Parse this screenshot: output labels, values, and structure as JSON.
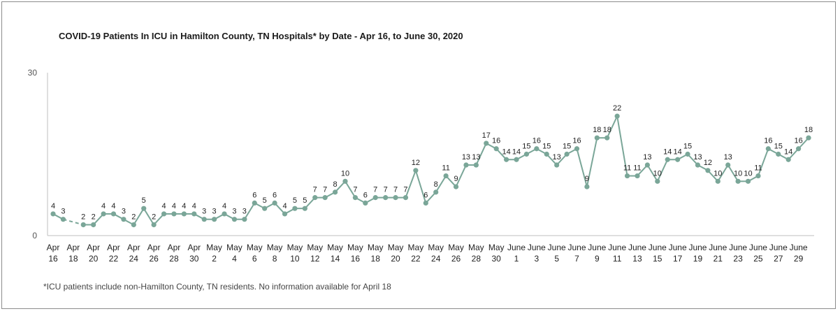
{
  "chart_data": {
    "type": "line",
    "title": "COVID-19 Patients In ICU in Hamilton County, TN Hospitals* by Date  - Apr 16, to June 30, 2020",
    "footnote": "*ICU patients include non-Hamilton County, TN  residents. No information available for April 18",
    "xlabel": "",
    "ylabel": "",
    "ylim": [
      0,
      30
    ],
    "y_ticks": [
      "0",
      "30"
    ],
    "grid": false,
    "line_color": "#7aa698",
    "x_tick_labels": [
      [
        "Apr",
        "16"
      ],
      [
        "Apr",
        "18"
      ],
      [
        "Apr",
        "20"
      ],
      [
        "Apr",
        "22"
      ],
      [
        "Apr",
        "24"
      ],
      [
        "Apr",
        "26"
      ],
      [
        "Apr",
        "28"
      ],
      [
        "Apr",
        "30"
      ],
      [
        "May",
        "2"
      ],
      [
        "May",
        "4"
      ],
      [
        "May",
        "6"
      ],
      [
        "May",
        "8"
      ],
      [
        "May",
        "10"
      ],
      [
        "May",
        "12"
      ],
      [
        "May",
        "14"
      ],
      [
        "May",
        "16"
      ],
      [
        "May",
        "18"
      ],
      [
        "May",
        "20"
      ],
      [
        "May",
        "22"
      ],
      [
        "May",
        "24"
      ],
      [
        "May",
        "26"
      ],
      [
        "May",
        "28"
      ],
      [
        "May",
        "30"
      ],
      [
        "June",
        "1"
      ],
      [
        "June",
        "3"
      ],
      [
        "June",
        "5"
      ],
      [
        "June",
        "7"
      ],
      [
        "June",
        "9"
      ],
      [
        "June",
        "11"
      ],
      [
        "June",
        "13"
      ],
      [
        "June",
        "15"
      ],
      [
        "June",
        "17"
      ],
      [
        "June",
        "19"
      ],
      [
        "June",
        "21"
      ],
      [
        "June",
        "23"
      ],
      [
        "June",
        "25"
      ],
      [
        "June",
        "27"
      ],
      [
        "June",
        "29"
      ]
    ],
    "series": [
      {
        "values": [
          4,
          3,
          null,
          2,
          2,
          4,
          4,
          3,
          2,
          5,
          2,
          4,
          4,
          4,
          4,
          3,
          3,
          4,
          3,
          3,
          6,
          5,
          6,
          4,
          5,
          5,
          7,
          7,
          8,
          10,
          7,
          6,
          7,
          7,
          7,
          7,
          12,
          6,
          8,
          11,
          9,
          13,
          13,
          17,
          16,
          14,
          14,
          15,
          16,
          15,
          13,
          15,
          16,
          9,
          18,
          18,
          22,
          11,
          11,
          13,
          10,
          14,
          14,
          15,
          13,
          12,
          10,
          13,
          10,
          10,
          11,
          16,
          15,
          14,
          16,
          18
        ]
      }
    ]
  }
}
